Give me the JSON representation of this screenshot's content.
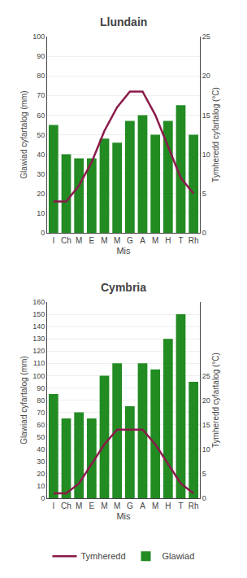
{
  "chart_data": [
    {
      "type": "bar",
      "title": "Llundain",
      "xlabel": "Mis",
      "ylabel": "Glawiad cyfartalog (mm)",
      "y2label": "Tymheredd cyfartalog (°C)",
      "categories": [
        "I",
        "Ch",
        "M",
        "E",
        "M",
        "M",
        "G",
        "A",
        "M",
        "H",
        "T",
        "Rh"
      ],
      "series": [
        {
          "name": "Glawiad",
          "type": "bar",
          "color": "#228B22",
          "values": [
            55,
            40,
            38,
            38,
            48,
            46,
            57,
            60,
            50,
            57,
            65,
            50
          ]
        },
        {
          "name": "Tymheredd",
          "type": "line",
          "color": "#8B1A4A",
          "axis": "y2",
          "values": [
            4,
            4,
            6,
            9,
            13,
            16,
            18,
            18,
            15,
            11,
            7,
            5
          ]
        }
      ],
      "ylim": [
        0,
        100
      ],
      "yticks": [
        0,
        10,
        20,
        30,
        40,
        50,
        60,
        70,
        80,
        90,
        100
      ],
      "y2lim": [
        0,
        25
      ],
      "y2ticks": [
        0,
        5,
        10,
        15,
        20,
        25
      ],
      "grid": true
    },
    {
      "type": "bar",
      "title": "Cymbria",
      "xlabel": "Mis",
      "ylabel": "Glawiad cyfartalog (mm)",
      "y2label": "Tymheredd cyfartalog (°C)",
      "categories": [
        "I",
        "Ch",
        "M",
        "E",
        "M",
        "M",
        "G",
        "A",
        "M",
        "H",
        "T",
        "Rh"
      ],
      "series": [
        {
          "name": "Glawiad",
          "type": "bar",
          "color": "#228B22",
          "values": [
            85,
            65,
            70,
            65,
            100,
            110,
            75,
            110,
            105,
            130,
            150,
            95
          ]
        },
        {
          "name": "Tymheredd",
          "type": "line",
          "color": "#8B1A4A",
          "axis": "y2",
          "values": [
            1,
            1,
            3,
            7,
            11,
            14,
            14,
            14,
            11,
            7,
            3,
            1
          ]
        }
      ],
      "ylim": [
        0,
        160
      ],
      "yticks": [
        0,
        10,
        20,
        30,
        40,
        50,
        60,
        70,
        80,
        90,
        100,
        110,
        120,
        130,
        140,
        150,
        160
      ],
      "y2lim": [
        0,
        40
      ],
      "y2ticks": [
        0,
        5,
        10,
        15,
        20,
        25
      ],
      "grid": true,
      "legend": "bottom"
    }
  ]
}
